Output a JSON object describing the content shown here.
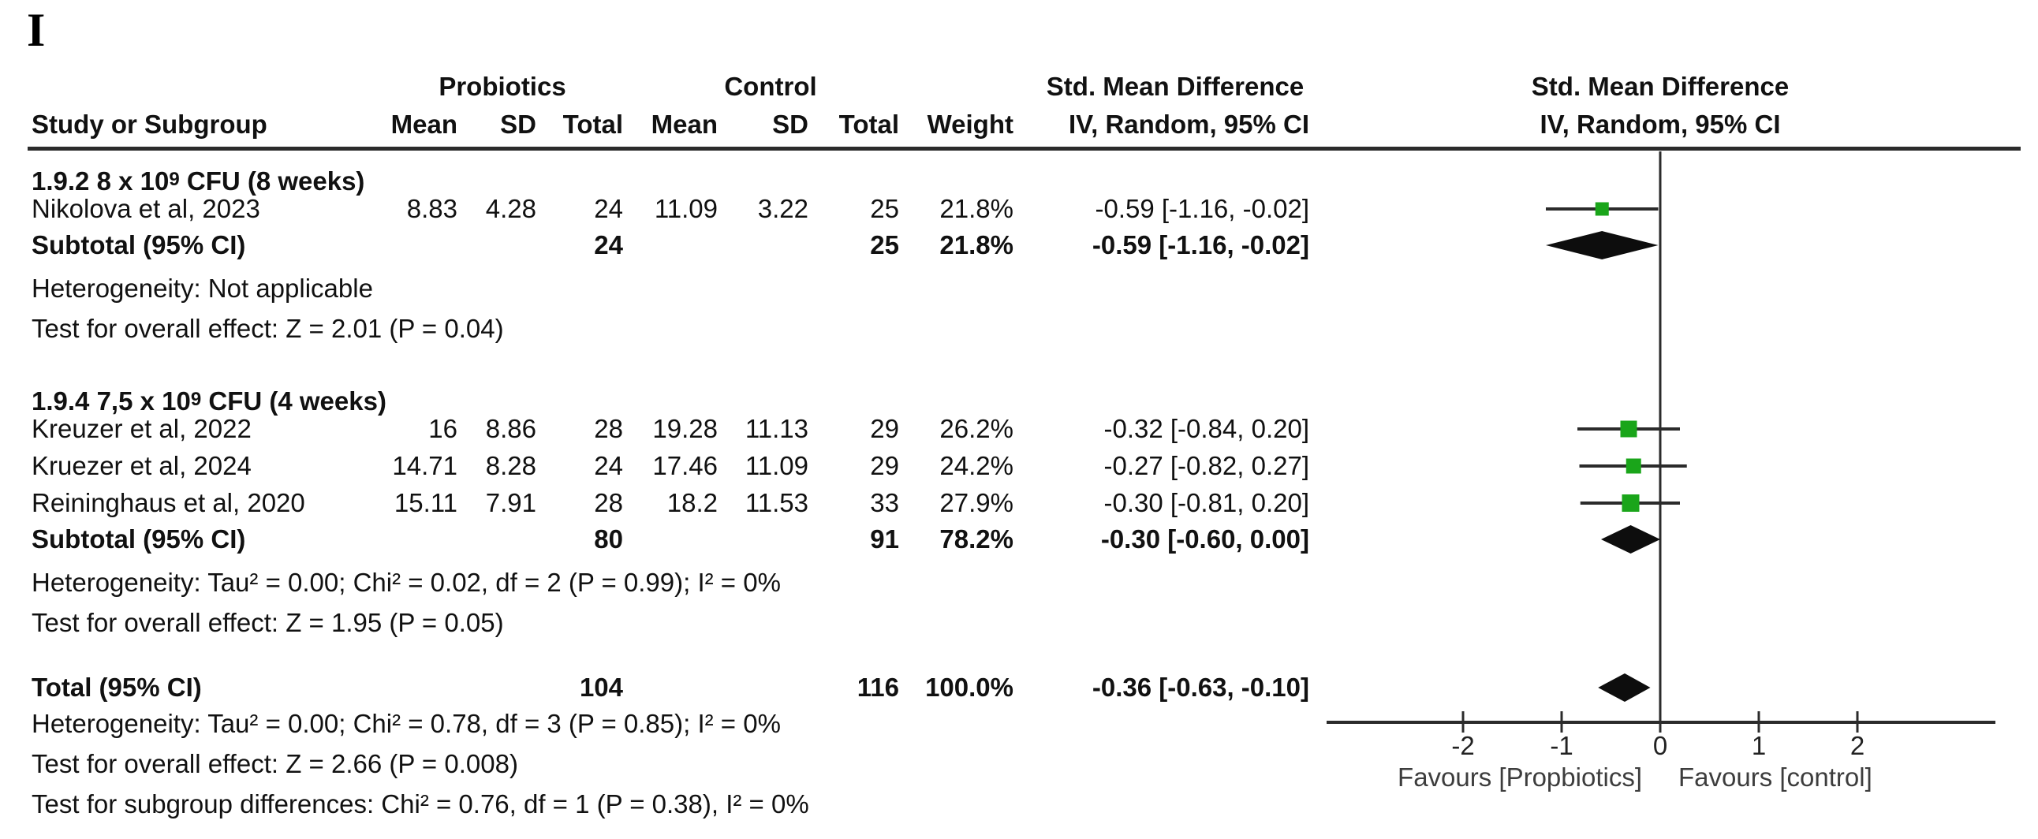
{
  "figure_label": "I",
  "colors": {
    "marker_green": "#1aa51a",
    "diamond_black": "#0d0d0d",
    "line_dark": "#2b2b2b"
  },
  "header": {
    "group1": "Probiotics",
    "group2": "Control",
    "smd_left": "Std. Mean Difference",
    "smd_right": "Std. Mean Difference",
    "col_study": "Study or Subgroup",
    "col_mean1": "Mean",
    "col_sd1": "SD",
    "col_total1": "Total",
    "col_mean2": "Mean",
    "col_sd2": "SD",
    "col_total2": "Total",
    "col_weight": "Weight",
    "col_ci_left": "IV, Random, 95% CI",
    "col_ci_right": "IV, Random, 95% CI"
  },
  "table": {
    "rows": [
      {
        "type": "title",
        "label_pre": "1.9.2 8 x 10",
        "label_sup": "9",
        "label_post": " CFU (8 weeks)"
      },
      {
        "type": "study",
        "study": "Nikolova et al, 2023",
        "mean1": "8.83",
        "sd1": "4.28",
        "total1": "24",
        "mean2": "11.09",
        "sd2": "3.22",
        "total2": "25",
        "weight": "21.8%",
        "ci": "-0.59 [-1.16, -0.02]",
        "plot": "square",
        "est": -0.59,
        "lo": -1.16,
        "hi": -0.02,
        "weight_num": 21.8
      },
      {
        "type": "subtotal",
        "bold": true,
        "study": "Subtotal (95% CI)",
        "total1": "24",
        "total2": "25",
        "weight": "21.8%",
        "ci": "-0.59 [-1.16, -0.02]",
        "plot": "diamond",
        "est": -0.59,
        "lo": -1.16,
        "hi": -0.02
      },
      {
        "type": "footnote",
        "study": "Heterogeneity: Not applicable"
      },
      {
        "type": "footnote",
        "study": "Test for overall effect: Z = 2.01 (P = 0.04)"
      },
      {
        "type": "title",
        "label_pre": "1.9.4 7,5 x 10",
        "label_sup": "9",
        "label_post": " CFU (4 weeks)"
      },
      {
        "type": "study",
        "study": "Kreuzer et al, 2022",
        "mean1": "16",
        "sd1": "8.86",
        "total1": "28",
        "mean2": "19.28",
        "sd2": "11.13",
        "total2": "29",
        "weight": "26.2%",
        "ci": "-0.32 [-0.84, 0.20]",
        "plot": "square",
        "est": -0.32,
        "lo": -0.84,
        "hi": 0.2,
        "weight_num": 26.2
      },
      {
        "type": "study",
        "study": "Kruezer et al, 2024",
        "mean1": "14.71",
        "sd1": "8.28",
        "total1": "24",
        "mean2": "17.46",
        "sd2": "11.09",
        "total2": "29",
        "weight": "24.2%",
        "ci": "-0.27 [-0.82, 0.27]",
        "plot": "square",
        "est": -0.27,
        "lo": -0.82,
        "hi": 0.27,
        "weight_num": 24.2
      },
      {
        "type": "study",
        "study": "Reininghaus et al, 2020",
        "mean1": "15.11",
        "sd1": "7.91",
        "total1": "28",
        "mean2": "18.2",
        "sd2": "11.53",
        "total2": "33",
        "weight": "27.9%",
        "ci": "-0.30 [-0.81, 0.20]",
        "plot": "square",
        "est": -0.3,
        "lo": -0.81,
        "hi": 0.2,
        "weight_num": 27.9
      },
      {
        "type": "subtotal",
        "bold": true,
        "study": "Subtotal (95% CI)",
        "total1": "80",
        "total2": "91",
        "weight": "78.2%",
        "ci": "-0.30 [-0.60, 0.00]",
        "plot": "diamond",
        "est": -0.3,
        "lo": -0.6,
        "hi": 0.0
      },
      {
        "type": "footnote",
        "study": "Heterogeneity: Tau² = 0.00; Chi² = 0.02, df = 2 (P = 0.99); I² = 0%"
      },
      {
        "type": "footnote",
        "study": "Test for overall effect: Z = 1.95 (P = 0.05)"
      },
      {
        "type": "total",
        "bold": true,
        "study": "Total (95% CI)",
        "total1": "104",
        "total2": "116",
        "weight": "100.0%",
        "ci": "-0.36 [-0.63, -0.10]",
        "plot": "diamond",
        "est": -0.36,
        "lo": -0.63,
        "hi": -0.1
      },
      {
        "type": "footnote",
        "study": "Heterogeneity: Tau² = 0.00; Chi² = 0.78, df = 3 (P = 0.85); I² = 0%"
      },
      {
        "type": "footnote",
        "study": "Test for overall effect: Z = 2.66 (P = 0.008)"
      },
      {
        "type": "footnote",
        "study": "Test for subgroup differences: Chi² = 0.76, df = 1 (P = 0.38), I² = 0%"
      }
    ]
  },
  "chart_data": {
    "type": "forest",
    "title": "Std. Mean Difference",
    "method": "IV, Random, 95% CI",
    "xticks": [
      -2,
      -1,
      0,
      1,
      2
    ],
    "xlim": [
      -3.4,
      3.4
    ],
    "favours_left": "Favours [Propbiotics]",
    "favours_right": "Favours [control]",
    "series": [
      {
        "name": "Nikolova et al, 2023",
        "est": -0.59,
        "ci": [
          -1.16,
          -0.02
        ],
        "weight_pct": 21.8,
        "marker": "square"
      },
      {
        "name": "Subtotal 1.9.2 (95% CI)",
        "est": -0.59,
        "ci": [
          -1.16,
          -0.02
        ],
        "weight_pct": 21.8,
        "marker": "diamond"
      },
      {
        "name": "Kreuzer et al, 2022",
        "est": -0.32,
        "ci": [
          -0.84,
          0.2
        ],
        "weight_pct": 26.2,
        "marker": "square"
      },
      {
        "name": "Kruezer et al, 2024",
        "est": -0.27,
        "ci": [
          -0.82,
          0.27
        ],
        "weight_pct": 24.2,
        "marker": "square"
      },
      {
        "name": "Reininghaus et al, 2020",
        "est": -0.3,
        "ci": [
          -0.81,
          0.2
        ],
        "weight_pct": 27.9,
        "marker": "square"
      },
      {
        "name": "Subtotal 1.9.4 (95% CI)",
        "est": -0.3,
        "ci": [
          -0.6,
          0.0
        ],
        "weight_pct": 78.2,
        "marker": "diamond"
      },
      {
        "name": "Total (95% CI)",
        "est": -0.36,
        "ci": [
          -0.63,
          -0.1
        ],
        "weight_pct": 100.0,
        "marker": "diamond"
      }
    ]
  }
}
